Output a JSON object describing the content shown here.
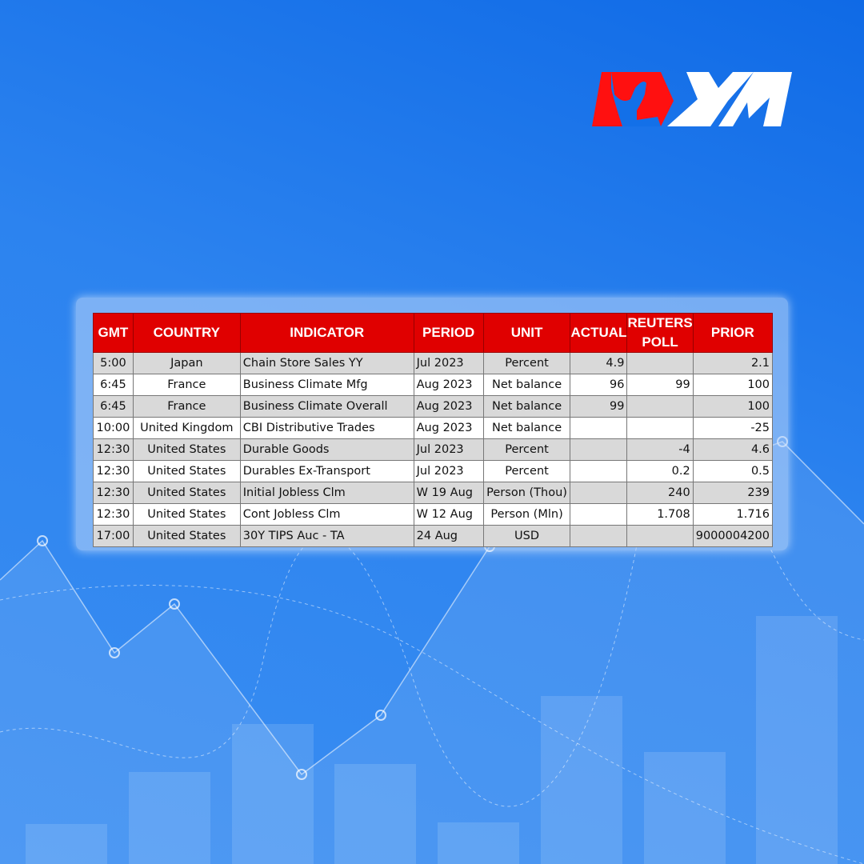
{
  "brand": {
    "logo_text": "XM",
    "colors": {
      "red": "#e00000",
      "blue": "#1370e8",
      "white": "#ffffff"
    }
  },
  "table": {
    "headers": [
      "GMT",
      "COUNTRY",
      "INDICATOR",
      "PERIOD",
      "UNIT",
      "ACTUAL",
      "REUTERS POLL",
      "PRIOR"
    ],
    "rows": [
      [
        "5:00",
        "Japan",
        "Chain Store Sales YY",
        "Jul 2023",
        "Percent",
        "4.9",
        "",
        "2.1"
      ],
      [
        "6:45",
        "France",
        "Business Climate Mfg",
        "Aug 2023",
        "Net balance",
        "96",
        "99",
        "100"
      ],
      [
        "6:45",
        "France",
        "Business Climate Overall",
        "Aug 2023",
        "Net balance",
        "99",
        "",
        "100"
      ],
      [
        "10:00",
        "United Kingdom",
        "CBI Distributive Trades",
        "Aug 2023",
        "Net balance",
        "",
        "",
        "-25"
      ],
      [
        "12:30",
        "United States",
        "Durable Goods",
        "Jul 2023",
        "Percent",
        "",
        "-4",
        "4.6"
      ],
      [
        "12:30",
        "United States",
        "Durables Ex-Transport",
        "Jul 2023",
        "Percent",
        "",
        "0.2",
        "0.5"
      ],
      [
        "12:30",
        "United States",
        "Initial Jobless Clm",
        "W 19 Aug",
        "Person (Thou)",
        "",
        "240",
        "239"
      ],
      [
        "12:30",
        "United States",
        "Cont Jobless Clm",
        "W 12 Aug",
        "Person (Mln)",
        "",
        "1.708",
        "1.716"
      ],
      [
        "17:00",
        "United States",
        "30Y TIPS Auc - TA",
        "24 Aug",
        "USD",
        "",
        "",
        "9000004200"
      ]
    ]
  }
}
